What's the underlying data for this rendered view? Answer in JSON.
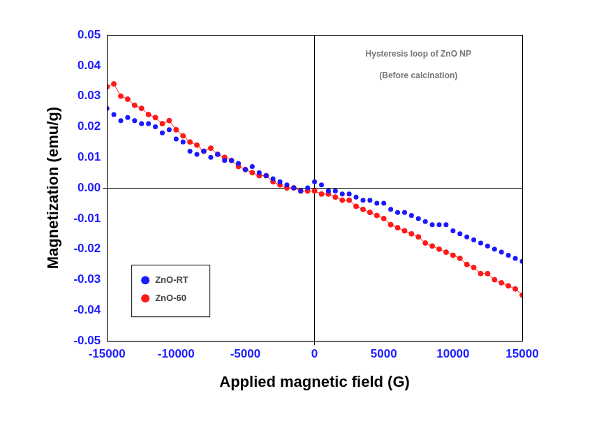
{
  "chart_data": {
    "type": "scatter",
    "x_label": "Applied magnetic field (G)",
    "y_label": "Magnetization (emu/g)",
    "annotations": [
      "Hysteresis loop of ZnO NP",
      "(Before calcination)"
    ],
    "x": [
      -15000,
      -14500,
      -14000,
      -13500,
      -13000,
      -12500,
      -12000,
      -11500,
      -11000,
      -10500,
      -10000,
      -9500,
      -9000,
      -8500,
      -8000,
      -7500,
      -7000,
      -6500,
      -6000,
      -5500,
      -5000,
      -4500,
      -4000,
      -3500,
      -3000,
      -2500,
      -2000,
      -1500,
      -1000,
      -500,
      0,
      500,
      1000,
      1500,
      2000,
      2500,
      3000,
      3500,
      4000,
      4500,
      5000,
      5500,
      6000,
      6500,
      7000,
      7500,
      8000,
      8500,
      9000,
      9500,
      10000,
      10500,
      11000,
      11500,
      12000,
      12500,
      13000,
      13500,
      14000,
      14500,
      15000
    ],
    "series": [
      {
        "name": "ZnO-RT",
        "color": "#1a1aff",
        "marker": "circle",
        "line_style": "none",
        "values": [
          0.026,
          0.024,
          0.022,
          0.023,
          0.022,
          0.021,
          0.021,
          0.02,
          0.018,
          0.019,
          0.016,
          0.015,
          0.012,
          0.011,
          0.012,
          0.01,
          0.011,
          0.009,
          0.009,
          0.008,
          0.006,
          0.007,
          0.005,
          0.004,
          0.003,
          0.002,
          0.001,
          0.0,
          -0.001,
          0.0,
          0.002,
          0.001,
          -0.001,
          -0.001,
          -0.002,
          -0.002,
          -0.003,
          -0.004,
          -0.004,
          -0.005,
          -0.005,
          -0.007,
          -0.008,
          -0.008,
          -0.009,
          -0.01,
          -0.011,
          -0.012,
          -0.012,
          -0.012,
          -0.014,
          -0.015,
          -0.016,
          -0.017,
          -0.018,
          -0.019,
          -0.02,
          -0.021,
          -0.022,
          -0.023,
          -0.024
        ]
      },
      {
        "name": "ZnO-60",
        "color": "#ff1a1a",
        "marker": "circle",
        "line_style": "solid",
        "values": [
          0.033,
          0.034,
          0.03,
          0.029,
          0.027,
          0.026,
          0.024,
          0.023,
          0.021,
          0.022,
          0.019,
          0.017,
          0.015,
          0.014,
          0.012,
          0.013,
          0.011,
          0.01,
          0.009,
          0.007,
          0.006,
          0.005,
          0.004,
          0.004,
          0.002,
          0.001,
          0.0,
          0.0,
          -0.001,
          -0.001,
          -0.001,
          -0.002,
          -0.002,
          -0.003,
          -0.004,
          -0.004,
          -0.006,
          -0.007,
          -0.008,
          -0.009,
          -0.01,
          -0.012,
          -0.013,
          -0.014,
          -0.015,
          -0.016,
          -0.018,
          -0.019,
          -0.02,
          -0.021,
          -0.022,
          -0.023,
          -0.025,
          -0.026,
          -0.028,
          -0.028,
          -0.03,
          -0.031,
          -0.032,
          -0.033,
          -0.035
        ]
      }
    ],
    "xlim": [
      -15000,
      15000
    ],
    "xticks": [
      -15000,
      -10000,
      -5000,
      0,
      5000,
      10000,
      15000
    ],
    "ylim": [
      -0.05,
      0.05
    ],
    "yticks": [
      -0.05,
      -0.04,
      -0.03,
      -0.02,
      -0.01,
      {
        "value": 0,
        "label": "0.00"
      },
      0.01,
      0.02,
      0.03,
      0.04,
      0.05
    ],
    "grid": false,
    "legend": "lower left"
  }
}
